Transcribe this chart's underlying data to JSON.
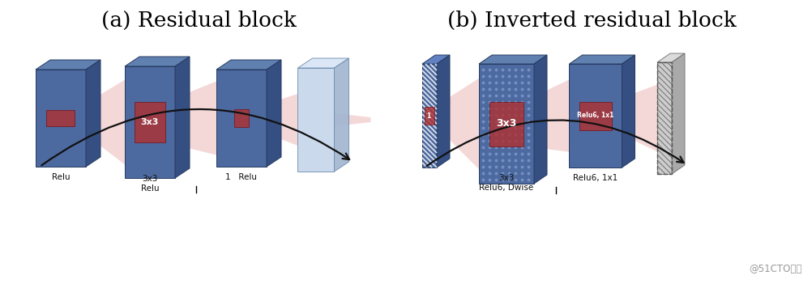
{
  "title_a": "(a) Residual block",
  "title_b": "(b) Inverted residual block",
  "title_fontsize": 19,
  "watermark": "@51CTO博客",
  "bg_color": "#ffffff",
  "dark_face": "#4d6aa0",
  "dark_top": "#6080b0",
  "dark_right": "#354f82",
  "light_face": "#c5d5ea",
  "light_top": "#d8e5f5",
  "light_right": "#a0b5d0",
  "filter_color": "#b03030",
  "filter_alpha": 0.8,
  "cone_color": "#e8aaaa",
  "cone_alpha": 0.45,
  "arrow_color": "#111111",
  "label_fontsize": 7.5,
  "label_color": "#111111"
}
